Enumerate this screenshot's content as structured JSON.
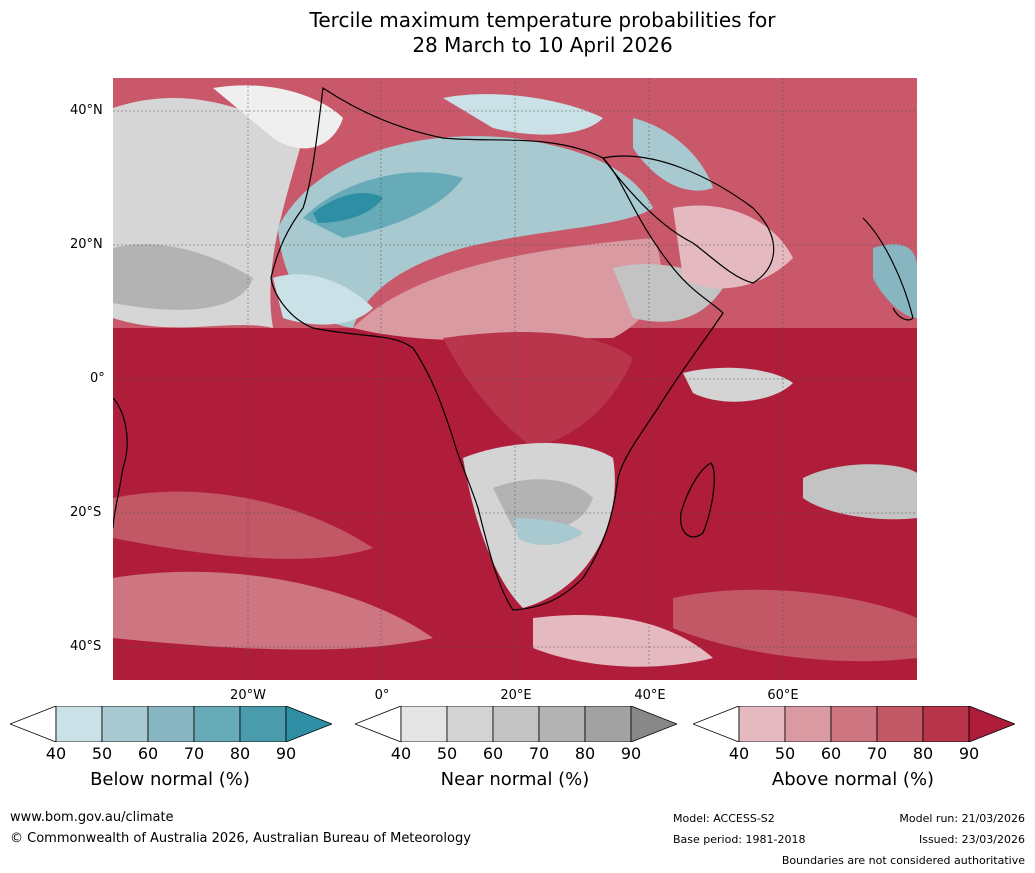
{
  "title": {
    "line1": "Tercile maximum temperature probabilities for",
    "line2": "28 March to 10 April 2026"
  },
  "axes": {
    "lat_labels": [
      "40°N",
      "20°N",
      "0°",
      "20°S",
      "40°S"
    ],
    "lon_labels": [
      "20°W",
      "0°",
      "20°E",
      "40°E",
      "60°E"
    ]
  },
  "legend": [
    {
      "label": "Below normal (%)",
      "ticks": [
        "40",
        "50",
        "60",
        "70",
        "80",
        "90"
      ],
      "colors": [
        "#ffffff",
        "#c9e1e7",
        "#a7c9cf",
        "#88b6c0",
        "#68abb8",
        "#4a9bac",
        "#2e8ea3"
      ]
    },
    {
      "label": "Near normal (%)",
      "ticks": [
        "40",
        "50",
        "60",
        "70",
        "80",
        "90"
      ],
      "colors": [
        "#ffffff",
        "#e5e5e5",
        "#d4d4d4",
        "#c3c3c3",
        "#b3b3b3",
        "#a2a2a2",
        "#888888"
      ]
    },
    {
      "label": "Above normal (%)",
      "ticks": [
        "40",
        "50",
        "60",
        "70",
        "80",
        "90"
      ],
      "colors": [
        "#ffffff",
        "#e4b9bf",
        "#d99aa2",
        "#cd7580",
        "#c25766",
        "#b8354b",
        "#ae1c39"
      ]
    }
  ],
  "footer": {
    "url": "www.bom.gov.au/climate",
    "copyright": "© Commonwealth of Australia 2026, Australian Bureau of Meteorology",
    "model": "Model: ACCESS-S2",
    "base_period": "Base period: 1981-2018",
    "model_run": "Model run: 21/03/2026",
    "issued": "Issued: 23/03/2026",
    "disclaimer": "Boundaries are not considered authoritative"
  }
}
